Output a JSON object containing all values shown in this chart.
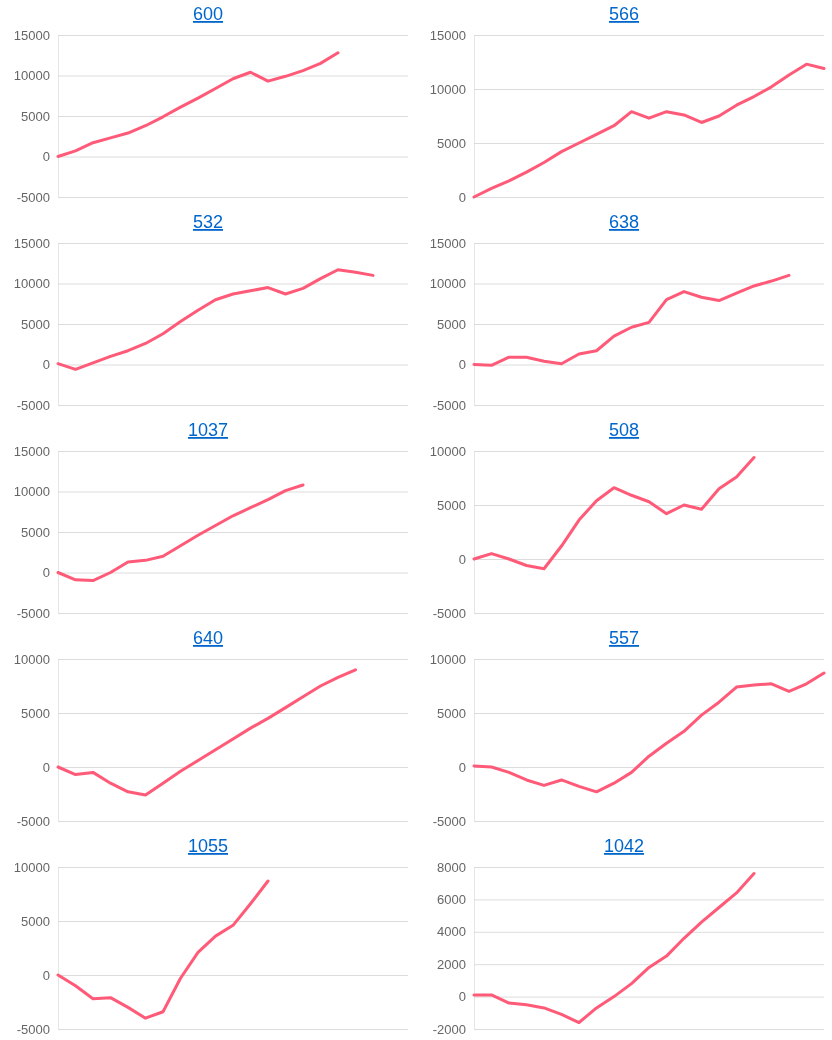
{
  "chart_data": [
    {
      "type": "line",
      "title": "600",
      "categories": [
        null,
        null,
        null,
        null,
        null,
        null,
        null,
        null,
        null,
        null,
        null,
        null,
        null,
        null,
        null,
        null,
        null,
        null,
        null,
        null,
        null
      ],
      "series": [
        {
          "color": "#ff5a78",
          "values": [
            0,
            700,
            1700,
            2300,
            2900,
            3800,
            4900,
            6100,
            7200,
            8400,
            9600,
            10400,
            9300,
            9900,
            10600,
            11500,
            12800,
            null,
            null,
            null,
            null
          ]
        }
      ],
      "ylim": [
        -5000,
        15000
      ],
      "yticks": [
        -5000,
        0,
        5000,
        10000,
        15000
      ],
      "grid": "y",
      "tick_labels": "y"
    },
    {
      "type": "line",
      "title": "566",
      "categories": [
        null,
        null,
        null,
        null,
        null,
        null,
        null,
        null,
        null,
        null,
        null,
        null,
        null,
        null,
        null,
        null,
        null,
        null,
        null,
        null,
        null
      ],
      "series": [
        {
          "color": "#ff5a78",
          "values": [
            0,
            800,
            1500,
            2300,
            3200,
            4200,
            5000,
            5800,
            6600,
            7900,
            7300,
            7900,
            7600,
            6900,
            7500,
            8500,
            9300,
            10200,
            11300,
            12300,
            11900
          ]
        }
      ],
      "ylim": [
        0,
        15000
      ],
      "yticks": [
        0,
        5000,
        10000,
        15000
      ],
      "grid": "y",
      "tick_labels": "y"
    },
    {
      "type": "line",
      "title": "532",
      "categories": [
        null,
        null,
        null,
        null,
        null,
        null,
        null,
        null,
        null,
        null,
        null,
        null,
        null,
        null,
        null,
        null,
        null,
        null,
        null,
        null,
        null
      ],
      "series": [
        {
          "color": "#ff5a78",
          "values": [
            100,
            -600,
            200,
            1000,
            1700,
            2600,
            3800,
            5300,
            6700,
            8000,
            8700,
            9100,
            9500,
            8700,
            9400,
            10600,
            11700,
            11400,
            11000,
            null,
            null
          ]
        }
      ],
      "ylim": [
        -5000,
        15000
      ],
      "yticks": [
        -5000,
        0,
        5000,
        10000,
        15000
      ],
      "grid": "y",
      "tick_labels": "y"
    },
    {
      "type": "line",
      "title": "638",
      "categories": [
        null,
        null,
        null,
        null,
        null,
        null,
        null,
        null,
        null,
        null,
        null,
        null,
        null,
        null,
        null,
        null,
        null,
        null,
        null,
        null,
        null
      ],
      "series": [
        {
          "color": "#ff5a78",
          "values": [
            0,
            -100,
            900,
            900,
            400,
            100,
            1300,
            1700,
            3500,
            4600,
            5200,
            8000,
            9000,
            8300,
            7900,
            8800,
            9700,
            10300,
            11000,
            null,
            null
          ]
        }
      ],
      "ylim": [
        -5000,
        15000
      ],
      "yticks": [
        -5000,
        0,
        5000,
        10000,
        15000
      ],
      "grid": "y",
      "tick_labels": "y"
    },
    {
      "type": "line",
      "title": "1037",
      "categories": [
        null,
        null,
        null,
        null,
        null,
        null,
        null,
        null,
        null,
        null,
        null,
        null,
        null,
        null,
        null,
        null,
        null,
        null,
        null,
        null,
        null
      ],
      "series": [
        {
          "color": "#ff5a78",
          "values": [
            0,
            -900,
            -1000,
            0,
            1300,
            1500,
            2000,
            3300,
            4600,
            5800,
            7000,
            8000,
            9000,
            10100,
            10800,
            null,
            null,
            null,
            null,
            null,
            null
          ]
        }
      ],
      "ylim": [
        -5000,
        15000
      ],
      "yticks": [
        -5000,
        0,
        5000,
        10000,
        15000
      ],
      "grid": "y",
      "tick_labels": "y"
    },
    {
      "type": "line",
      "title": "508",
      "categories": [
        null,
        null,
        null,
        null,
        null,
        null,
        null,
        null,
        null,
        null,
        null,
        null,
        null,
        null,
        null,
        null,
        null,
        null,
        null,
        null,
        null
      ],
      "series": [
        {
          "color": "#ff5a78",
          "values": [
            0,
            500,
            0,
            -600,
            -900,
            1200,
            3600,
            5400,
            6600,
            5900,
            5300,
            4200,
            5000,
            4600,
            6500,
            7600,
            9400,
            null,
            null,
            null,
            null
          ]
        }
      ],
      "ylim": [
        -5000,
        10000
      ],
      "yticks": [
        -5000,
        0,
        5000,
        10000
      ],
      "grid": "y",
      "tick_labels": "y"
    },
    {
      "type": "line",
      "title": "640",
      "categories": [
        null,
        null,
        null,
        null,
        null,
        null,
        null,
        null,
        null,
        null,
        null,
        null,
        null,
        null,
        null,
        null,
        null,
        null,
        null,
        null,
        null
      ],
      "series": [
        {
          "color": "#ff5a78",
          "values": [
            0,
            -700,
            -500,
            -1500,
            -2300,
            -2600,
            -1500,
            -400,
            600,
            1600,
            2600,
            3600,
            4500,
            5500,
            6500,
            7500,
            8300,
            9000,
            null,
            null,
            null
          ]
        }
      ],
      "ylim": [
        -5000,
        10000
      ],
      "yticks": [
        -5000,
        0,
        5000,
        10000
      ],
      "grid": "y",
      "tick_labels": "y"
    },
    {
      "type": "line",
      "title": "557",
      "categories": [
        null,
        null,
        null,
        null,
        null,
        null,
        null,
        null,
        null,
        null,
        null,
        null,
        null,
        null,
        null,
        null,
        null,
        null,
        null,
        null,
        null
      ],
      "series": [
        {
          "color": "#ff5a78",
          "values": [
            100,
            0,
            -500,
            -1200,
            -1700,
            -1200,
            -1800,
            -2300,
            -1500,
            -500,
            1000,
            2200,
            3300,
            4800,
            6000,
            7400,
            7600,
            7700,
            7000,
            7700,
            8700
          ]
        }
      ],
      "ylim": [
        -5000,
        10000
      ],
      "yticks": [
        -5000,
        0,
        5000,
        10000
      ],
      "grid": "y",
      "tick_labels": "y"
    },
    {
      "type": "line",
      "title": "1055",
      "categories": [
        null,
        null,
        null,
        null,
        null,
        null,
        null,
        null,
        null,
        null,
        null,
        null,
        null,
        null,
        null,
        null,
        null,
        null,
        null,
        null,
        null
      ],
      "series": [
        {
          "color": "#ff5a78",
          "values": [
            0,
            -1000,
            -2200,
            -2100,
            -3000,
            -4000,
            -3400,
            -300,
            2100,
            3600,
            4600,
            6600,
            8700,
            null,
            null,
            null,
            null,
            null,
            null,
            null,
            null
          ]
        }
      ],
      "ylim": [
        -5000,
        10000
      ],
      "yticks": [
        -5000,
        0,
        5000,
        10000
      ],
      "grid": "y",
      "tick_labels": "y"
    },
    {
      "type": "line",
      "title": "1042",
      "categories": [
        null,
        null,
        null,
        null,
        null,
        null,
        null,
        null,
        null,
        null,
        null,
        null,
        null,
        null,
        null,
        null,
        null,
        null,
        null,
        null,
        null
      ],
      "series": [
        {
          "color": "#ff5a78",
          "values": [
            100,
            100,
            -400,
            -500,
            -700,
            -1100,
            -1600,
            -700,
            0,
            800,
            1800,
            2500,
            3600,
            4600,
            5500,
            6400,
            7600,
            null,
            null,
            null,
            null
          ]
        }
      ],
      "ylim": [
        -2000,
        8000
      ],
      "yticks": [
        -2000,
        0,
        2000,
        4000,
        6000,
        8000
      ],
      "grid": "y",
      "tick_labels": "y"
    }
  ]
}
